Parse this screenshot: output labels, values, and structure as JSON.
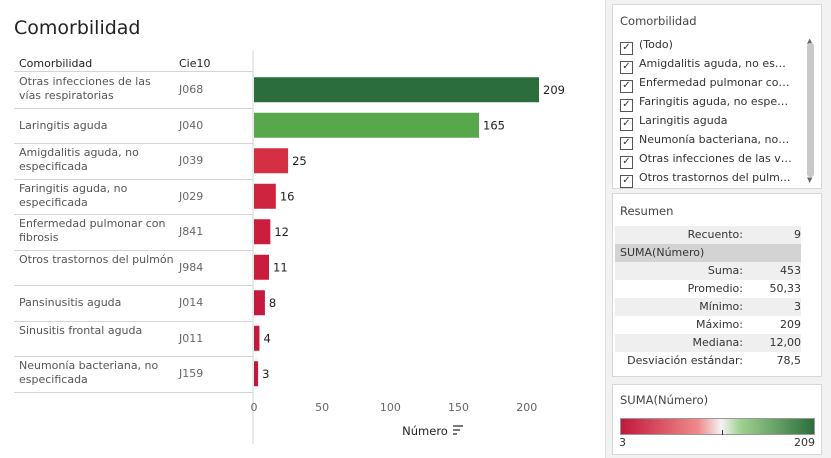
{
  "title": "Comorbilidad",
  "columns": {
    "label": "Comorbilidad",
    "code": "Cie10"
  },
  "rows": [
    {
      "label": "Otras infecciones de las vías respiratorias",
      "code": "J068"
    },
    {
      "label": "Laringitis aguda",
      "code": "J040"
    },
    {
      "label": "Amigdalitis aguda, no especificada",
      "code": "J039"
    },
    {
      "label": "Faringitis aguda, no especificada",
      "code": "J029"
    },
    {
      "label": "Enfermedad pulmonar con fibrosis",
      "code": "J841"
    },
    {
      "label": "Otros trastornos del pulmón",
      "code": "J984"
    },
    {
      "label": "Pansinusitis aguda",
      "code": "J014"
    },
    {
      "label": "Sinusitis frontal aguda",
      "code": "J011"
    },
    {
      "label": "Neumonía bacteriana, no especificada",
      "code": "J159"
    }
  ],
  "chart_data": {
    "type": "bar",
    "orientation": "horizontal",
    "title": "Comorbilidad",
    "categories": [
      "Otras infecciones de las vías respiratorias",
      "Laringitis aguda",
      "Amigdalitis aguda, no especificada",
      "Faringitis aguda, no especificada",
      "Enfermedad pulmonar con fibrosis",
      "Otros trastornos del pulmón",
      "Pansinusitis aguda",
      "Sinusitis frontal aguda",
      "Neumonía bacteriana, no especificada"
    ],
    "values": [
      209,
      165,
      25,
      16,
      12,
      11,
      8,
      4,
      3
    ],
    "colors": [
      "#2b6e3b",
      "#58a74c",
      "#d42f43",
      "#cf2440",
      "#cb1e3f",
      "#ca1d3e",
      "#c51a3d",
      "#c3193c",
      "#c2183c"
    ],
    "xlabel": "Número",
    "ylabel": "",
    "xlim": [
      0,
      220
    ],
    "xticks": [
      "0",
      "50",
      "100",
      "150",
      "200"
    ],
    "xtick_values": [
      0,
      50,
      100,
      150,
      200
    ]
  },
  "filter": {
    "title": "Comorbilidad",
    "items": [
      "(Todo)",
      "Amigdalitis aguda, no esp...",
      "Enfermedad pulmonar con...",
      "Faringitis aguda, no espec...",
      "Laringitis aguda",
      "Neumonía bacteriana, no ...",
      "Otras infecciones de las ví...",
      "Otros trastornos del pulm..."
    ],
    "check": "✓"
  },
  "summary": {
    "title": "Resumen",
    "count_label": "Recuento:",
    "count_value": "9",
    "group_label": "SUMA(Número)",
    "stats": [
      {
        "label": "Suma:",
        "value": "453"
      },
      {
        "label": "Promedio:",
        "value": "50,33"
      },
      {
        "label": "Mínimo:",
        "value": "3"
      },
      {
        "label": "Máximo:",
        "value": "209"
      },
      {
        "label": "Mediana:",
        "value": "12,00"
      },
      {
        "label": "Desviación estándar:",
        "value": "78,5"
      }
    ]
  },
  "legend": {
    "title": "SUMA(Número)",
    "min": "3",
    "max": "209",
    "color_low": "#c2183c",
    "color_mid": "#f3f3f3",
    "color_high": "#2b6e3b"
  }
}
